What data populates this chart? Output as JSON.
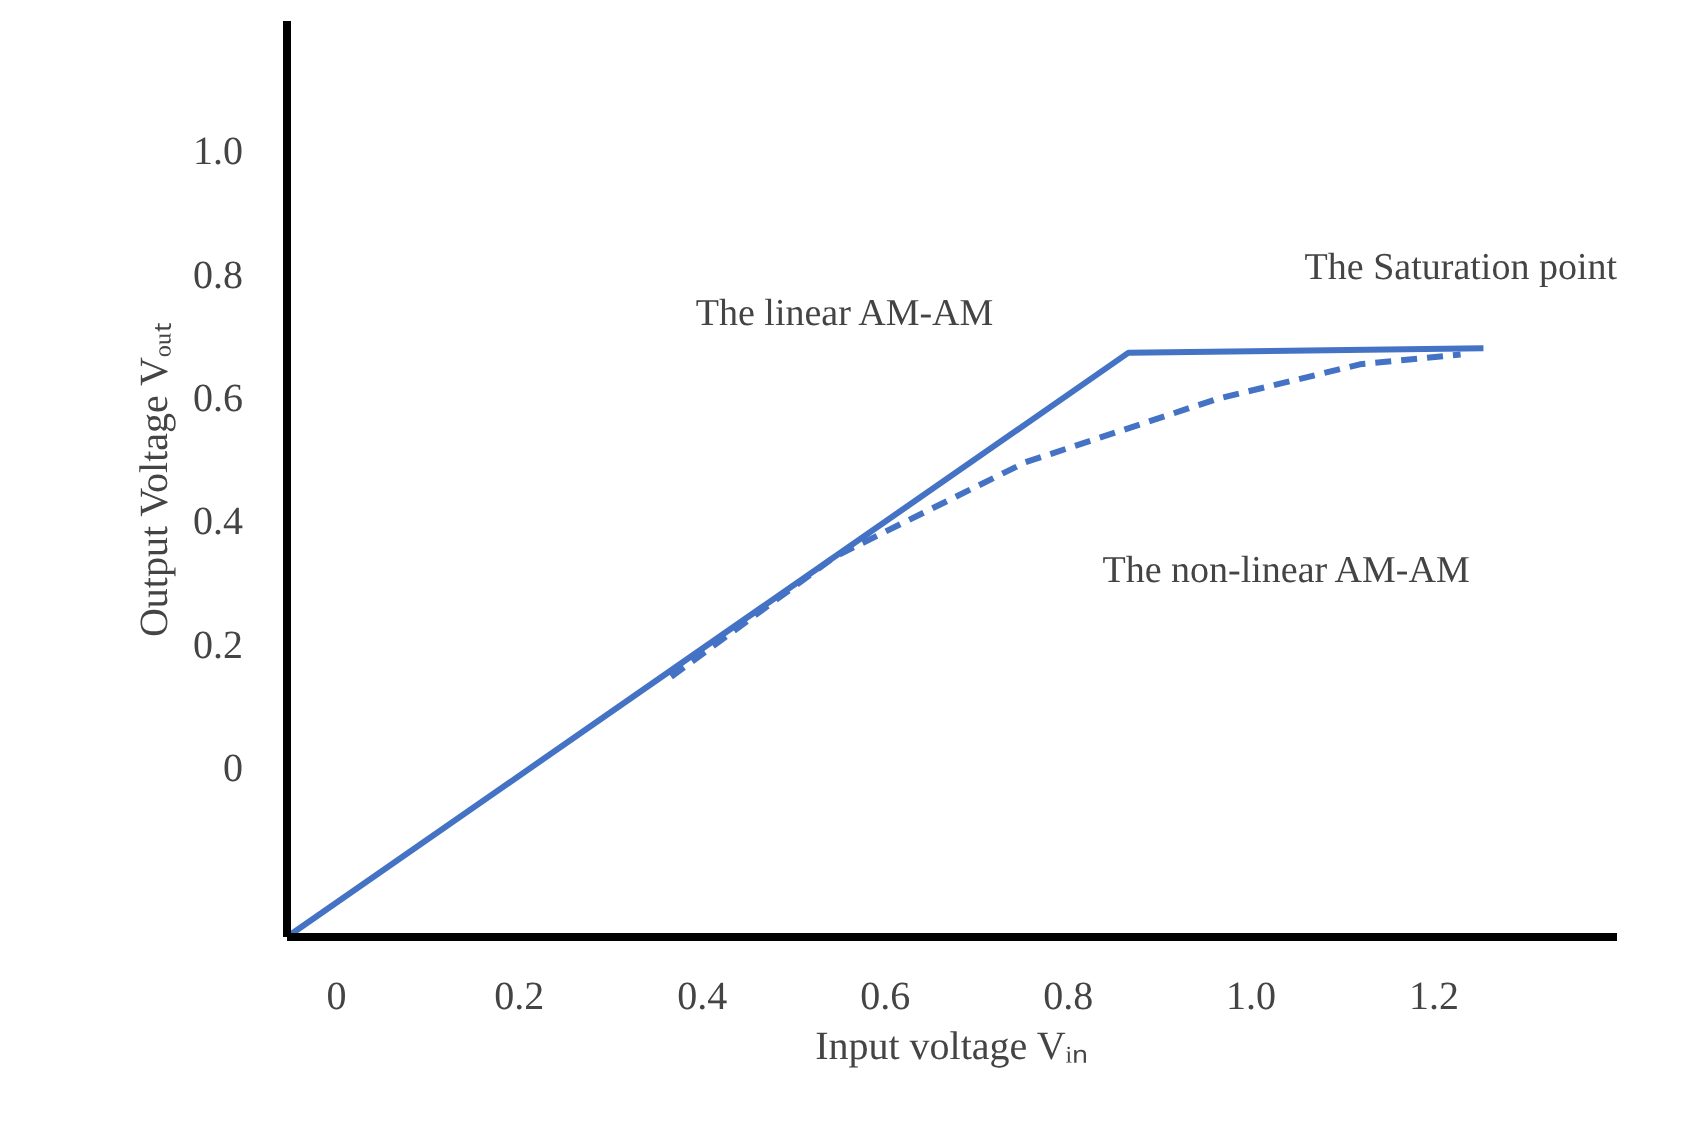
{
  "chart_data": {
    "type": "line",
    "xlabel": "Input voltage Vᵢₙ",
    "ylabel": "Output Voltage Vₒᵤₜ",
    "xlim": [
      -0.054,
      1.4
    ],
    "ylim": [
      -0.276,
      1.21
    ],
    "xticks": [
      0,
      0.2,
      0.4,
      0.6,
      0.8,
      {
        "value": 1.0,
        "label": "1.0"
      },
      1.2
    ],
    "yticks": [
      0,
      0.2,
      0.4,
      0.6,
      0.8,
      {
        "value": 1.0,
        "label": "1.0"
      }
    ],
    "grid": false,
    "marker": "none",
    "series": [
      {
        "color": "#4472c4",
        "line_style": "solid",
        "x": [
          -0.054,
          0.866,
          1.254
        ],
        "values": [
          -0.276,
          0.672,
          0.679
        ]
      },
      {
        "color": "#4472c4",
        "line_style": "dashed",
        "x": [
          0.366,
          0.545,
          0.753,
          0.963,
          1.119,
          1.229
        ],
        "values": [
          0.146,
          0.341,
          0.494,
          0.597,
          0.653,
          0.669
        ]
      }
    ],
    "annotations": [
      "The linear AM-AM",
      "The Saturation point",
      "The non-linear AM-AM"
    ]
  }
}
